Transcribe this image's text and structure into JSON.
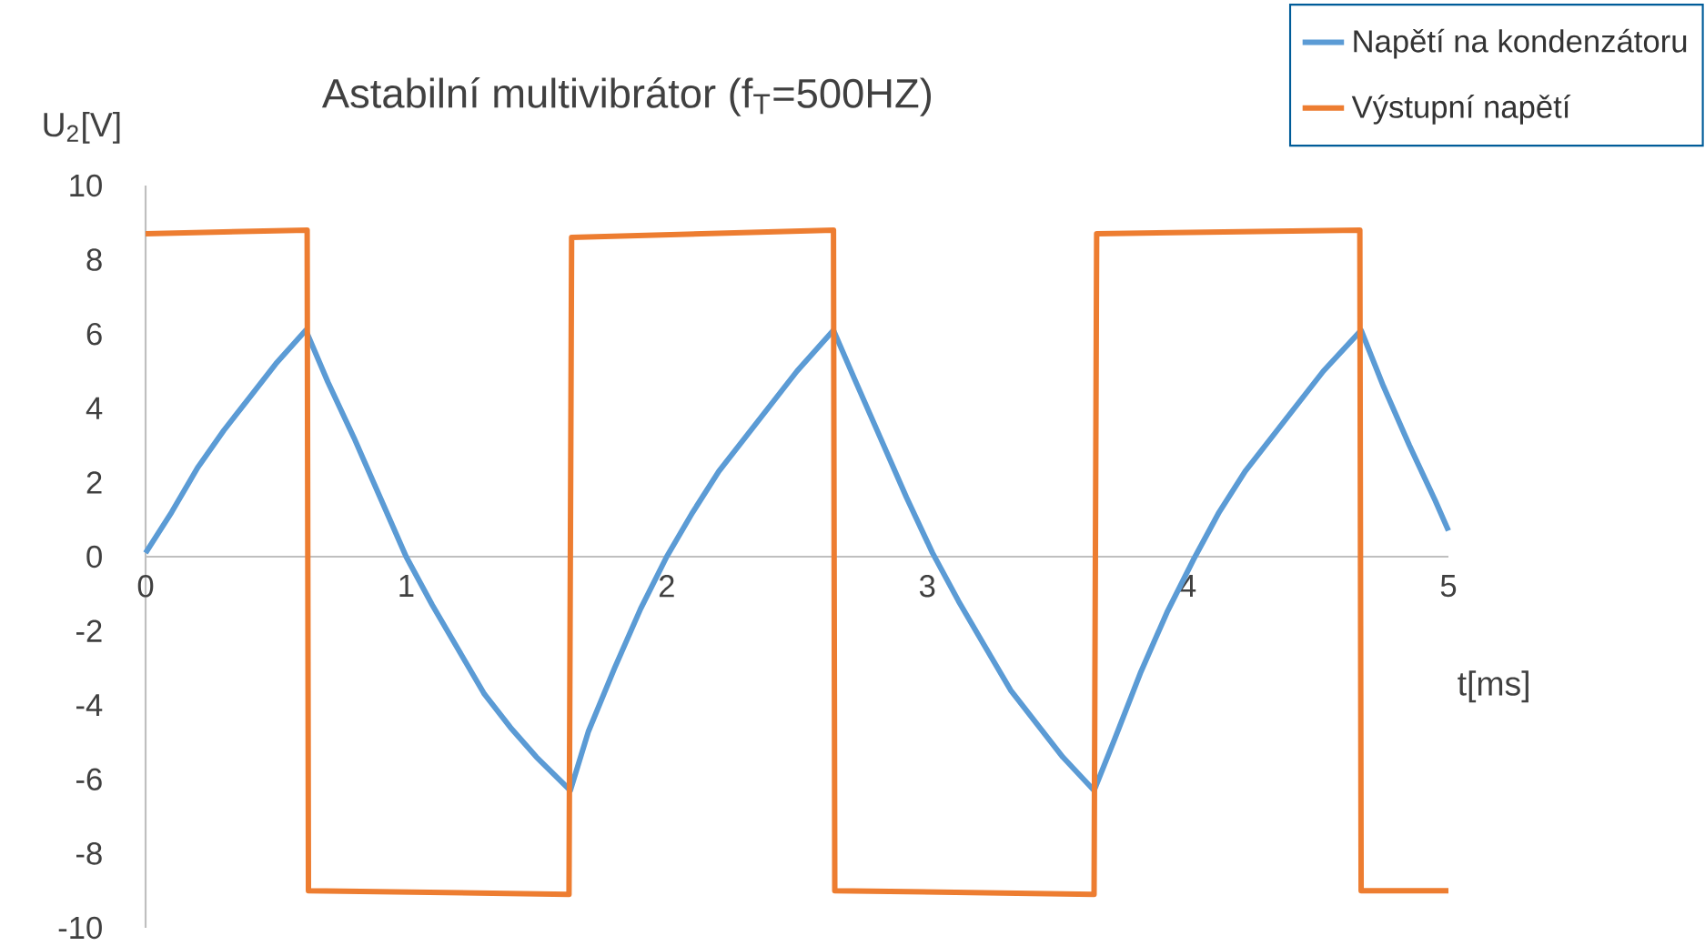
{
  "chart_data": {
    "type": "line",
    "title": "Astabilní multivibrátor (f$_{T}$=500HZ)",
    "xlabel": "t[ms]",
    "ylabel": "U$_{2}$[V]",
    "xlim": [
      0,
      5
    ],
    "xticks": [
      0,
      1,
      2,
      3,
      4,
      5
    ],
    "ylim": [
      -10,
      10
    ],
    "yticks": [
      -10,
      -8,
      -6,
      -4,
      -2,
      0,
      2,
      4,
      6,
      8,
      10
    ],
    "legend": "top right",
    "series": [
      {
        "name": "Napětí na kondenzátoru",
        "color": "#5b9bd5",
        "x": [
          0,
          0.1,
          0.2,
          0.3,
          0.4,
          0.5,
          0.615,
          0.7,
          0.8,
          0.9,
          1.0,
          1.1,
          1.2,
          1.3,
          1.4,
          1.5,
          1.63,
          1.7,
          1.8,
          1.9,
          2.0,
          2.1,
          2.2,
          2.3,
          2.4,
          2.5,
          2.64,
          2.72,
          2.82,
          2.92,
          3.02,
          3.12,
          3.22,
          3.32,
          3.42,
          3.52,
          3.64,
          3.72,
          3.82,
          3.92,
          4.02,
          4.12,
          4.22,
          4.32,
          4.42,
          4.52,
          4.665,
          4.75,
          4.85,
          4.95,
          5.0
        ],
        "values": [
          0.1,
          1.2,
          2.4,
          3.4,
          4.3,
          5.2,
          6.1,
          4.7,
          3.2,
          1.6,
          0.0,
          -1.3,
          -2.5,
          -3.7,
          -4.6,
          -5.4,
          -6.3,
          -4.7,
          -3.0,
          -1.4,
          0.0,
          1.2,
          2.3,
          3.2,
          4.1,
          5.0,
          6.1,
          4.8,
          3.2,
          1.6,
          0.1,
          -1.2,
          -2.4,
          -3.6,
          -4.5,
          -5.4,
          -6.3,
          -4.9,
          -3.1,
          -1.5,
          -0.1,
          1.2,
          2.3,
          3.2,
          4.1,
          5.0,
          6.1,
          4.6,
          3.0,
          1.5,
          0.7
        ]
      },
      {
        "name": "Výstupní napětí",
        "color": "#ed7d31",
        "x": [
          0,
          0.62,
          0.625,
          1.625,
          1.635,
          2.64,
          2.645,
          3.64,
          3.65,
          4.66,
          4.665,
          5.0
        ],
        "values": [
          8.7,
          8.8,
          -9.0,
          -9.1,
          8.6,
          8.8,
          -9.0,
          -9.1,
          8.7,
          8.8,
          -9.0,
          -9.0
        ]
      }
    ]
  }
}
